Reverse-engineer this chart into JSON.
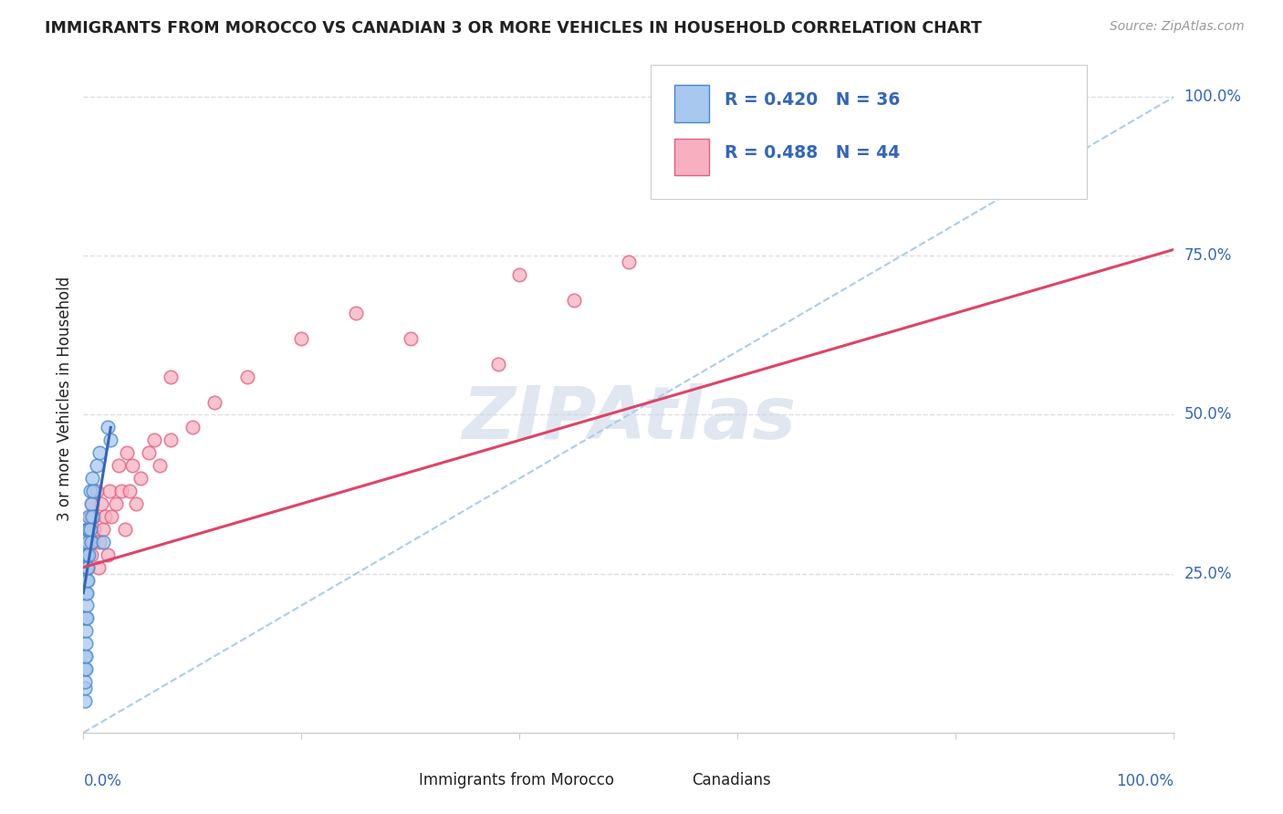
{
  "title": "IMMIGRANTS FROM MOROCCO VS CANADIAN 3 OR MORE VEHICLES IN HOUSEHOLD CORRELATION CHART",
  "source": "Source: ZipAtlas.com",
  "ylabel": "3 or more Vehicles in Household",
  "legend_blue_text": "R = 0.420   N = 36",
  "legend_pink_text": "R = 0.488   N = 44",
  "legend_label_blue": "Immigrants from Morocco",
  "legend_label_pink": "Canadians",
  "blue_scatter_color": "#a8c8f0",
  "pink_scatter_color": "#f8b0c0",
  "blue_edge_color": "#4488cc",
  "pink_edge_color": "#e06080",
  "blue_line_color": "#3366bb",
  "pink_line_color": "#dd4466",
  "diag_line_color": "#aaccee",
  "grid_color": "#dddddd",
  "text_color_blue": "#3366bb",
  "text_color_dark": "#222222",
  "text_color_gray": "#999999",
  "bg_color": "#ffffff",
  "watermark_color": "#ccd8e8",
  "blue_scatter_x": [
    0.001,
    0.001,
    0.001,
    0.001,
    0.001,
    0.002,
    0.002,
    0.002,
    0.002,
    0.002,
    0.002,
    0.003,
    0.003,
    0.003,
    0.003,
    0.003,
    0.003,
    0.004,
    0.004,
    0.004,
    0.004,
    0.005,
    0.005,
    0.005,
    0.006,
    0.006,
    0.007,
    0.007,
    0.008,
    0.008,
    0.009,
    0.012,
    0.015,
    0.025,
    0.022,
    0.018
  ],
  "blue_scatter_y": [
    0.05,
    0.07,
    0.08,
    0.1,
    0.12,
    0.1,
    0.12,
    0.14,
    0.16,
    0.18,
    0.22,
    0.18,
    0.2,
    0.22,
    0.24,
    0.26,
    0.28,
    0.24,
    0.26,
    0.3,
    0.32,
    0.28,
    0.32,
    0.34,
    0.32,
    0.38,
    0.3,
    0.36,
    0.34,
    0.4,
    0.38,
    0.42,
    0.44,
    0.46,
    0.48,
    0.3
  ],
  "pink_scatter_x": [
    0.002,
    0.003,
    0.004,
    0.005,
    0.006,
    0.007,
    0.008,
    0.009,
    0.01,
    0.01,
    0.012,
    0.014,
    0.015,
    0.016,
    0.018,
    0.02,
    0.022,
    0.024,
    0.026,
    0.03,
    0.032,
    0.035,
    0.038,
    0.04,
    0.042,
    0.045,
    0.048,
    0.052,
    0.06,
    0.065,
    0.07,
    0.08,
    0.1,
    0.12,
    0.15,
    0.2,
    0.25,
    0.3,
    0.4,
    0.45,
    0.5,
    0.58,
    0.38,
    0.08
  ],
  "pink_scatter_y": [
    0.28,
    0.32,
    0.26,
    0.3,
    0.34,
    0.28,
    0.36,
    0.3,
    0.32,
    0.34,
    0.38,
    0.26,
    0.3,
    0.36,
    0.32,
    0.34,
    0.28,
    0.38,
    0.34,
    0.36,
    0.42,
    0.38,
    0.32,
    0.44,
    0.38,
    0.42,
    0.36,
    0.4,
    0.44,
    0.46,
    0.42,
    0.46,
    0.48,
    0.52,
    0.56,
    0.62,
    0.66,
    0.62,
    0.72,
    0.68,
    0.74,
    0.98,
    0.58,
    0.56
  ],
  "blue_regline_x": [
    0.0,
    0.025
  ],
  "blue_regline_y": [
    0.22,
    0.48
  ],
  "pink_regline_x": [
    0.0,
    1.0
  ],
  "pink_regline_y": [
    0.26,
    0.76
  ],
  "xlim": [
    0.0,
    1.0
  ],
  "ylim": [
    0.0,
    1.05
  ]
}
